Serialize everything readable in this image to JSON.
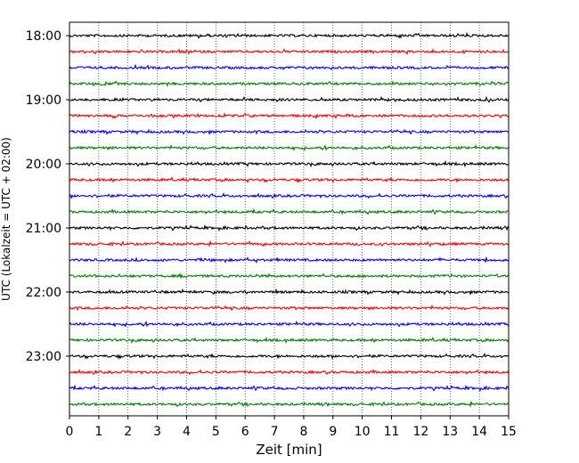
{
  "chart_data": {
    "type": "line",
    "title": "",
    "xlabel": "Zeit  [min]",
    "ylabel": "UTC (Lokalzeit = UTC + 02:00)",
    "xlim": [
      0,
      15
    ],
    "x_ticks": [
      "0",
      "1",
      "2",
      "3",
      "4",
      "5",
      "6",
      "7",
      "8",
      "9",
      "10",
      "11",
      "12",
      "13",
      "14",
      "15"
    ],
    "y_tick_labels": [
      "18:00",
      "19:00",
      "20:00",
      "21:00",
      "22:00",
      "23:00"
    ],
    "trace_interval_min": 15,
    "start_time": "18:00",
    "trace_count": 24,
    "trace_colors": [
      "#000000",
      "#ff0000",
      "#0000ff",
      "#008000"
    ],
    "grid": "vertical dotted",
    "legend": "none"
  }
}
